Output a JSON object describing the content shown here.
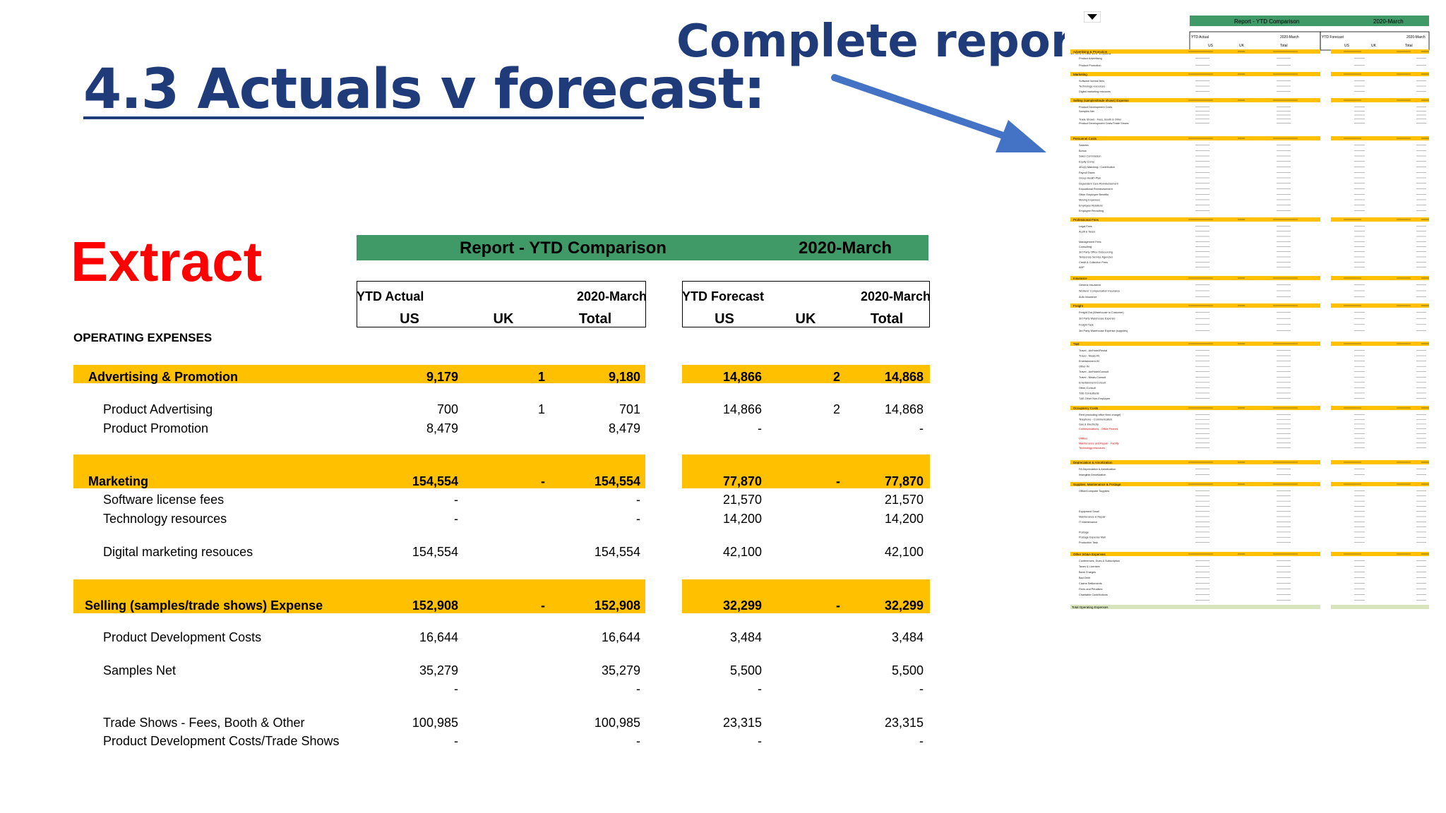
{
  "title": "4.3  Actuals v forecast:",
  "complete_report_label": "Complete report:",
  "extract_label": "Extract",
  "report": {
    "header_title": "Report - YTD Comparison",
    "header_period": "2020-March",
    "actual_box": {
      "label": "YTD Actual",
      "period": "2020-March",
      "cols": [
        "US",
        "UK",
        "Total"
      ]
    },
    "forecast_box": {
      "label": "YTD Forecast",
      "period": "2020-March",
      "cols": [
        "US",
        "UK",
        "Total"
      ]
    },
    "section_label": "OPERATING EXPENSES",
    "rows": [
      {
        "kind": "band",
        "label": "Advertising & Promotion",
        "a_us": "9,179",
        "a_uk": "1",
        "a_total": "9,180",
        "f_us": "14,866",
        "f_uk": "2",
        "f_total": "14,868"
      },
      {
        "kind": "item",
        "label": "Product Advertising",
        "a_us": "700",
        "a_uk": "1",
        "a_total": "701",
        "f_us": "14,866",
        "f_uk": "2",
        "f_total": "14,868"
      },
      {
        "kind": "item",
        "label": "Product Promotion",
        "a_us": "8,479",
        "a_uk": "",
        "a_total": "8,479",
        "f_us": "-",
        "f_uk": "",
        "f_total": "-"
      },
      {
        "kind": "band",
        "label": "Marketing",
        "a_us": "154,554",
        "a_uk": "-",
        "a_total": "154,554",
        "f_us": "77,870",
        "f_uk": "-",
        "f_total": "77,870"
      },
      {
        "kind": "item",
        "label": "Software license fees",
        "a_us": "-",
        "a_uk": "",
        "a_total": "-",
        "f_us": "21,570",
        "f_uk": "",
        "f_total": "21,570"
      },
      {
        "kind": "item",
        "label": "Technology resources",
        "a_us": "-",
        "a_uk": "",
        "a_total": "-",
        "f_us": "14,200",
        "f_uk": "",
        "f_total": "14,200"
      },
      {
        "kind": "item",
        "label": "Digital marketing resouces",
        "a_us": "154,554",
        "a_uk": "",
        "a_total": "154,554",
        "f_us": "42,100",
        "f_uk": "",
        "f_total": "42,100"
      },
      {
        "kind": "band",
        "label": "Selling (samples/trade shows)  Expense",
        "a_us": "152,908",
        "a_uk": "-",
        "a_total": "152,908",
        "f_us": "32,299",
        "f_uk": "-",
        "f_total": "32,299"
      },
      {
        "kind": "item",
        "label": "Product Development Costs",
        "a_us": "16,644",
        "a_uk": "",
        "a_total": "16,644",
        "f_us": "3,484",
        "f_uk": "",
        "f_total": "3,484"
      },
      {
        "kind": "item",
        "label": "Samples Net",
        "a_us": "35,279",
        "a_uk": "",
        "a_total": "35,279",
        "f_us": "5,500",
        "f_uk": "",
        "f_total": "5,500"
      },
      {
        "kind": "item",
        "label": "",
        "a_us": "-",
        "a_uk": "",
        "a_total": "-",
        "f_us": "-",
        "f_uk": "",
        "f_total": "-"
      },
      {
        "kind": "item",
        "label": "Trade Shows - Fees, Booth & Other",
        "a_us": "100,985",
        "a_uk": "",
        "a_total": "100,985",
        "f_us": "23,315",
        "f_uk": "",
        "f_total": "23,315"
      },
      {
        "kind": "item",
        "label": "Product Development Costs/Trade Shows",
        "a_us": "-",
        "a_uk": "",
        "a_total": "-",
        "f_us": "-",
        "f_uk": "",
        "f_total": "-"
      }
    ]
  },
  "thumbnail": {
    "header_title": "Report - YTD Comparison",
    "header_period": "2020-March",
    "actual_label": "YTD Actual",
    "forecast_label": "YTD Forecast",
    "period": "2020-March",
    "cols": [
      "US",
      "UK",
      "Total"
    ],
    "section_label": "OPERATING EXPENSES",
    "groups": [
      {
        "label": "Advertising & Promotion",
        "items": [
          "Product Advertising",
          "Product Promotion"
        ]
      },
      {
        "label": "Marketing",
        "items": [
          "Software license fees",
          "Technology resources",
          "Digital marketing resouces"
        ]
      },
      {
        "label": "Selling (samples/trade shows) Expense",
        "items": [
          "Product Development Costs",
          "Samples Net",
          "",
          "Trade Shows - Fees, Booth & Other",
          "Product Development Costs/Trade Shows"
        ]
      },
      {
        "label": "Personnel Costs",
        "items": [
          "Salaries",
          "Bonus",
          "Sales Commission",
          "Equity Comp",
          "401(k) Matching / Contribution",
          "Payroll Taxes",
          "Group Health Plan",
          "Dependent Care Reimbursement",
          "Educational Reimbursement",
          "Other Employee Benefits",
          "Moving Expenses",
          "Employee Relations",
          "Employee Recruiting"
        ]
      },
      {
        "label": "Professional Fees",
        "items": [
          "Legal Fees",
          "Audit & Taxes",
          "",
          "Management Fees",
          "Consulting",
          "3rd Party Office Outsourcing",
          "Temporary Service Agencies",
          "Credit & Collection Fees",
          "ADP"
        ]
      },
      {
        "label": "Insurance",
        "items": [
          "General Insurance",
          "Workers' Compensation Insurance",
          "Auto Insurance"
        ]
      },
      {
        "label": "Freight",
        "items": [
          "Freight Out (Warehouse to Customer)",
          "3rd Party Warehouse Expense",
          "Freight Task",
          "3rd Party Warehouse Expense (supplies)"
        ]
      },
      {
        "label": "T&E",
        "items": [
          "Travel - Air/Hotel/Rental",
          "Travel - Meals-IN",
          "Entertainment-IN",
          "Other-IN",
          "Travel - Air/Hotel/Consult",
          "Travel - Meals-Consult",
          "Entertainment-Consult",
          "Other-Consult",
          "T&E-Consultants",
          "T&E-Other Non-Employee"
        ]
      },
      {
        "label": "Occupancy Costs",
        "items": [
          "Rent (excluding office fixed charge)",
          "Telephone - Communication",
          "Gas & Electricity",
          "Communications - Office Phones",
          "",
          "Utilities",
          "Maintenance and Repair - Facility",
          "Technology resources"
        ]
      },
      {
        "label": "Depreciation & Amortization",
        "items": [
          "FA Depreciation & Amortization",
          "Intangible Amortization"
        ]
      },
      {
        "label": "Supplies, Maintenance & Postage",
        "items": [
          "Office/Computer Supplies",
          "",
          "",
          "",
          "Equipment Small",
          "Maintenance & Repair",
          "IT Maintenance",
          "",
          "Postage",
          "Postage Expense Mail",
          "Production Task"
        ]
      },
      {
        "label": "Other SG&A Expenses",
        "items": [
          "Conferences, Dues & Subscription",
          "Taxes & Licenses",
          "Bank Charges",
          "Bad Debt",
          "Claims Settlements",
          "Fines and Penalties",
          "Charitable Contributions",
          ""
        ]
      }
    ],
    "total_label": "Total Operating Expenses"
  },
  "colors": {
    "title_blue": "#1f3b7a",
    "extract_red": "#ff0000",
    "header_green": "#3f9a68",
    "band_yellow": "#ffc000",
    "arrow_blue": "#4472c4",
    "total_green": "#d8e4bc"
  },
  "icons": {
    "arrow": "arrow-right-down-icon",
    "dropdown": "dropdown-triangle-icon"
  }
}
